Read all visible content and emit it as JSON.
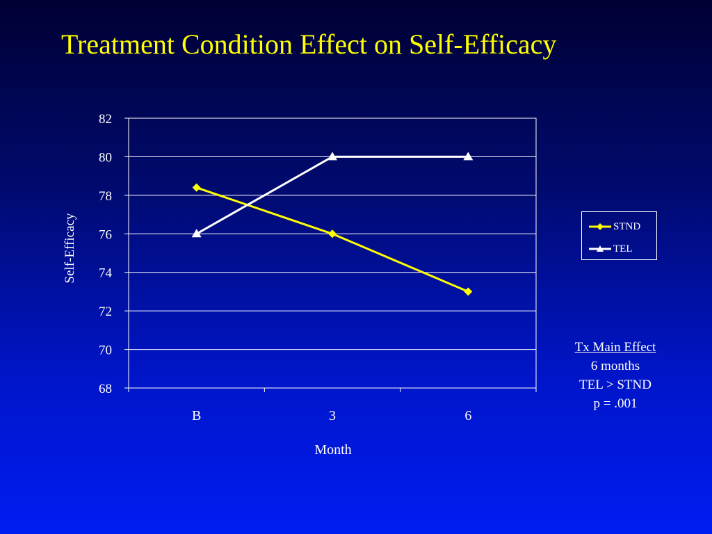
{
  "slide": {
    "title": "Treatment Condition Effect on Self-Efficacy"
  },
  "annotation": {
    "heading": "Tx Main Effect",
    "lines": [
      "6 months",
      "TEL > STND",
      "p = .001"
    ]
  },
  "colors": {
    "title": "#ffff00",
    "stnd": "#ffff00",
    "tel": "#ffffff",
    "gridline": "#ffffff",
    "text": "#ffffff"
  },
  "chart_data": {
    "type": "line",
    "xlabel": "Month",
    "ylabel": "Self-Efficacy",
    "categories": [
      "B",
      "3",
      "6"
    ],
    "ylim": [
      68,
      82
    ],
    "yticks": [
      68,
      70,
      72,
      74,
      76,
      78,
      80,
      82
    ],
    "grid": true,
    "legend_position": "right",
    "series": [
      {
        "name": "STND",
        "values": [
          78.4,
          76,
          73
        ],
        "marker": "diamond",
        "color": "#ffff00"
      },
      {
        "name": "TEL",
        "values": [
          76,
          80,
          80
        ],
        "marker": "triangle",
        "color": "#ffffff"
      }
    ]
  }
}
